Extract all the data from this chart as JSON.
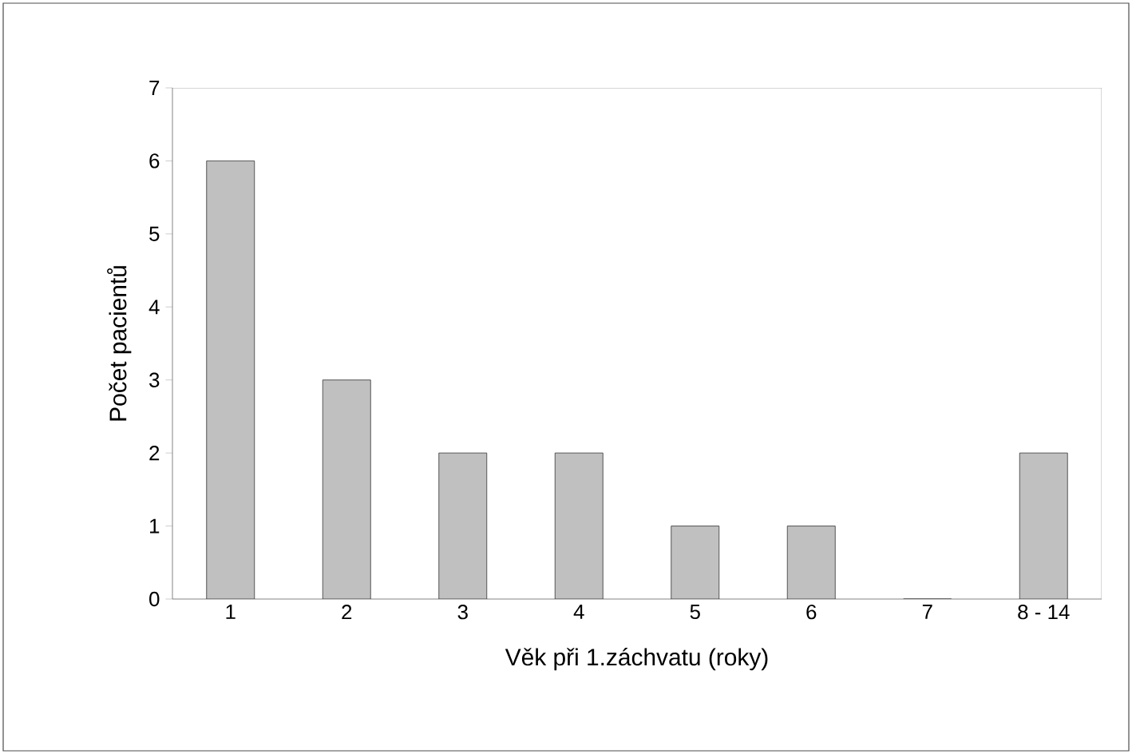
{
  "chart_data": {
    "type": "bar",
    "xlabel": "Věk při 1.záchvatu (roky)",
    "ylabel": "Počet pacientů",
    "categories": [
      "1",
      "2",
      "3",
      "4",
      "5",
      "6",
      "7",
      "8 - 14"
    ],
    "values": [
      6,
      3,
      2,
      2,
      1,
      1,
      0,
      2
    ],
    "color": "#c0c0c0",
    "ylim": [
      0,
      7
    ],
    "yticks": [
      0,
      1,
      2,
      3,
      4,
      5,
      6,
      7
    ],
    "grid": false
  }
}
